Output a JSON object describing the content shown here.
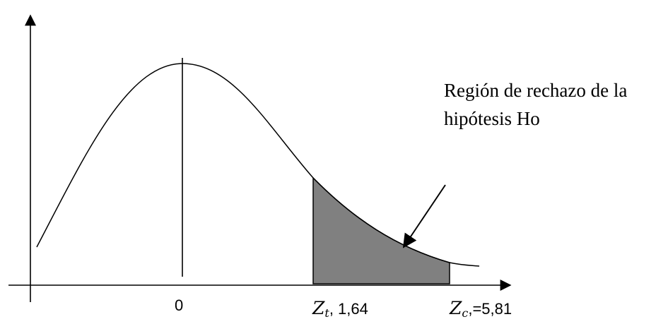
{
  "diagram": {
    "region_label_line1": "Región de rechazo de la",
    "region_label_line2": "hipótesis Ho",
    "tick_zero": "0",
    "zt": {
      "symbol": "Z",
      "subscript": "t",
      "value": ", 1,64"
    },
    "zc": {
      "symbol": "Z",
      "subscript": "c",
      "value": ",=5,81"
    },
    "colors": {
      "shaded_region": "#808080",
      "curve": "#000000"
    }
  }
}
